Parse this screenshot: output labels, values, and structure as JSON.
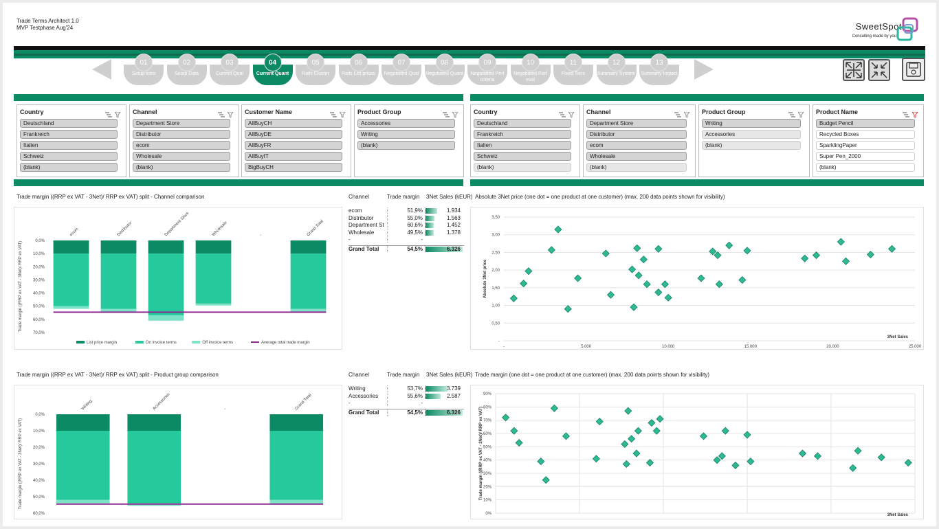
{
  "header": {
    "title": "Trade Terms Architect 1.0",
    "subtitle": "MVP Testphase Aug'24",
    "brand": "SweetSpot",
    "brand_tagline": "Consulting made by you"
  },
  "colors": {
    "accent": "#0b8a63",
    "accent_light": "#26c99b",
    "dark": "#111111",
    "inactive": "#cfcfcf"
  },
  "steps": [
    {
      "num": "01",
      "label": "Setup Intro"
    },
    {
      "num": "02",
      "label": "Setup Data"
    },
    {
      "num": "03",
      "label": "Current Qual"
    },
    {
      "num": "04",
      "label": "Current Quant",
      "active": true
    },
    {
      "num": "05",
      "label": "Rails Cluster"
    },
    {
      "num": "06",
      "label": "Rails List prices"
    },
    {
      "num": "07",
      "label": "Negotiated Qual"
    },
    {
      "num": "08",
      "label": "Negotiated Quant"
    },
    {
      "num": "09",
      "label": "Negotiated Perf criteria"
    },
    {
      "num": "10",
      "label": "Negotiated Perf eval"
    },
    {
      "num": "11",
      "label": "Fixed Tiers"
    },
    {
      "num": "12",
      "label": "Summary System"
    },
    {
      "num": "13",
      "label": "Summary Impact"
    }
  ],
  "toolbar_icons": [
    "expand-icon",
    "collapse-icon",
    "save-icon"
  ],
  "slicers_left": [
    {
      "title": "Country",
      "items": [
        "Deutschland",
        "Frankreich",
        "Italien",
        "Schweiz",
        "(blank)"
      ]
    },
    {
      "title": "Channel",
      "items": [
        "Department Store",
        "Distributor",
        "ecom",
        "Wholesale",
        "(blank)"
      ]
    },
    {
      "title": "Customer Name",
      "items": [
        "AllBuyCH",
        "AllBuyDE",
        "AllBuyFR",
        "AllBuyIT",
        "BigBuyCH"
      ]
    },
    {
      "title": "Product Group",
      "items": [
        "Accessories",
        "Writing",
        "(blank)"
      ]
    }
  ],
  "slicers_right": [
    {
      "title": "Country",
      "items": [
        "Deutschland",
        "Frankreich",
        "Italien",
        "Schweiz",
        "(blank)"
      ]
    },
    {
      "title": "Channel",
      "items": [
        "Department Store",
        "Distributor",
        "ecom",
        "Wholesale",
        "(blank)"
      ]
    },
    {
      "title": "Product Group",
      "items": [
        "Writing",
        "Accessories",
        "(blank)"
      ]
    },
    {
      "title": "Product Name",
      "items": [
        "Budget Pencil",
        "Recycled Boxes",
        "SparklingPaper",
        "Super Pen_2000",
        "(blank)"
      ]
    }
  ],
  "section1": {
    "title": "Trade margin ((RRP ex VAT - 3Net)/ RRP ex VAT) split - Channel comparison",
    "pivot_headers": [
      "Channel",
      "Trade margin",
      "3Net Sales (kEUR)"
    ],
    "scatter_title": "Absolute 3Net price (one dot = one product at one customer) (max. 200 data points shown for visibility)"
  },
  "pivot1": [
    {
      "name": "ecom",
      "margin": "51,9%",
      "sales": "1.934",
      "v": 1934
    },
    {
      "name": "Distributor",
      "margin": "55,0%",
      "sales": "1.563",
      "v": 1563
    },
    {
      "name": "Department St",
      "margin": "60,6%",
      "sales": "1.452",
      "v": 1452
    },
    {
      "name": "Wholesale",
      "margin": "49,5%",
      "sales": "1.378",
      "v": 1378
    },
    {
      "name": "-",
      "margin": "-",
      "sales": "",
      "v": 0
    },
    {
      "name": "Grand Total",
      "margin": "54,5%",
      "sales": "6.326",
      "v": 6326,
      "bold": true
    }
  ],
  "section2": {
    "title": "Trade margin ((RRP ex VAT - 3Net)/ RRP ex VAT) split - Product group comparison",
    "pivot_headers": [
      "Channel",
      "Trade margin",
      "3Net Sales (kEUR)"
    ],
    "scatter_title": "Trade margin (one dot = one product at one customer) (max. 200 data points shown for visibility)"
  },
  "pivot2": [
    {
      "name": "Writing",
      "margin": "53,7%",
      "sales": "3.739",
      "v": 3739
    },
    {
      "name": "Accessories",
      "margin": "55,6%",
      "sales": "2.587",
      "v": 2587
    },
    {
      "name": "-",
      "margin": "-",
      "sales": "",
      "v": 0
    },
    {
      "name": "Grand Total",
      "margin": "54,5%",
      "sales": "6.326",
      "v": 6326,
      "bold": true
    }
  ],
  "chart_data": [
    {
      "type": "bar",
      "categories": [
        "ecom",
        "Distributor",
        "Department Store",
        "Wholesale",
        "-",
        "Grand Total"
      ],
      "ylabel": "Trade margin ((RRP ex VAT - 3Net)/ RRP ex VAT)",
      "ylim": [
        0,
        70
      ],
      "yticks": [
        "0,0%",
        "10,0%",
        "20,0%",
        "30,0%",
        "40,0%",
        "50,0%",
        "60,0%",
        "70,0%"
      ],
      "series": [
        {
          "name": "List price margin",
          "values": [
            10,
            10,
            10,
            10,
            null,
            10
          ],
          "color": "#0b8a63"
        },
        {
          "name": "On invoice terms",
          "values": [
            40,
            42,
            47,
            38,
            null,
            42
          ],
          "color": "#26c99b"
        },
        {
          "name": "Off invoice terms",
          "values": [
            2,
            3,
            4,
            1.5,
            null,
            2.5
          ],
          "color": "#7de3c6"
        }
      ],
      "average": {
        "name": "Average total trade margin",
        "value": 54.5,
        "color": "#8e2a8e"
      }
    },
    {
      "type": "scatter",
      "xlabel": "3Net Sales",
      "ylabel": "Absolute 3Net price",
      "xlim": [
        0,
        25000
      ],
      "ylim": [
        0,
        3.5
      ],
      "xticks": [
        "-",
        "5.000",
        "10.000",
        "15.000",
        "20.000",
        "25.000"
      ],
      "yticks": [
        "-",
        "0,50",
        "1,00",
        "1,50",
        "2,00",
        "2,50",
        "3,00",
        "3,50"
      ],
      "points": [
        [
          600,
          1.2
        ],
        [
          1200,
          1.62
        ],
        [
          1500,
          1.97
        ],
        [
          2900,
          2.57
        ],
        [
          3300,
          3.15
        ],
        [
          3900,
          0.9
        ],
        [
          4500,
          1.77
        ],
        [
          6200,
          2.47
        ],
        [
          6500,
          1.3
        ],
        [
          7800,
          2.02
        ],
        [
          8100,
          2.62
        ],
        [
          7900,
          0.95
        ],
        [
          8200,
          1.85
        ],
        [
          8500,
          2.3
        ],
        [
          8700,
          1.6
        ],
        [
          9400,
          2.6
        ],
        [
          9400,
          1.37
        ],
        [
          9800,
          1.6
        ],
        [
          10000,
          1.22
        ],
        [
          12000,
          1.77
        ],
        [
          12700,
          2.53
        ],
        [
          13000,
          2.42
        ],
        [
          13100,
          1.6
        ],
        [
          13700,
          2.7
        ],
        [
          14500,
          1.72
        ],
        [
          14800,
          2.55
        ],
        [
          18300,
          2.33
        ],
        [
          19000,
          2.42
        ],
        [
          20500,
          2.8
        ],
        [
          20800,
          2.25
        ],
        [
          22300,
          2.44
        ],
        [
          23600,
          2.6
        ]
      ]
    },
    {
      "type": "bar",
      "categories": [
        "Writing",
        "Accessories",
        "-",
        "Grand Total"
      ],
      "ylabel": "Trade margin ((RRP ex VAT - 3Net)/ RRP ex VAT)",
      "ylim": [
        0,
        60
      ],
      "yticks": [
        "0,0%",
        "10,0%",
        "20,0%",
        "30,0%",
        "40,0%",
        "50,0%",
        "60,0%"
      ],
      "series": [
        {
          "name": "List price margin",
          "values": [
            10,
            10,
            null,
            10
          ],
          "color": "#0b8a63"
        },
        {
          "name": "On invoice terms",
          "values": [
            42,
            44,
            null,
            42
          ],
          "color": "#26c99b"
        },
        {
          "name": "Off invoice terms",
          "values": [
            2,
            1.5,
            null,
            2.5
          ],
          "color": "#7de3c6"
        }
      ],
      "average": {
        "name": "Average total trade margin",
        "value": 54.5,
        "color": "#8e2a8e"
      }
    },
    {
      "type": "scatter",
      "xlabel": "3Net Sales",
      "ylabel": "Trade margin ((RRP ex VAT - 3Net)/ RRP ex VAT)",
      "xlim": [
        0,
        25000
      ],
      "ylim": [
        0,
        90
      ],
      "xticks": [],
      "yticks": [
        "0%",
        "10%",
        "20%",
        "30%",
        "40%",
        "50%",
        "60%",
        "70%",
        "80%",
        "90%"
      ],
      "points": [
        [
          600,
          72
        ],
        [
          1100,
          62
        ],
        [
          1400,
          53
        ],
        [
          2700,
          39
        ],
        [
          3000,
          25
        ],
        [
          3500,
          79
        ],
        [
          4200,
          58
        ],
        [
          6000,
          41
        ],
        [
          6200,
          69
        ],
        [
          7800,
          37
        ],
        [
          7900,
          77
        ],
        [
          8100,
          56
        ],
        [
          7700,
          52
        ],
        [
          8400,
          45
        ],
        [
          8500,
          62
        ],
        [
          9200,
          38
        ],
        [
          9300,
          68
        ],
        [
          9600,
          62
        ],
        [
          9800,
          71
        ],
        [
          12400,
          58
        ],
        [
          13200,
          40
        ],
        [
          13500,
          43
        ],
        [
          13700,
          62
        ],
        [
          14300,
          36
        ],
        [
          15000,
          59
        ],
        [
          15200,
          39
        ],
        [
          18300,
          45
        ],
        [
          19200,
          43
        ],
        [
          21300,
          34
        ],
        [
          21600,
          47
        ],
        [
          23000,
          42
        ],
        [
          24600,
          38
        ]
      ]
    }
  ]
}
